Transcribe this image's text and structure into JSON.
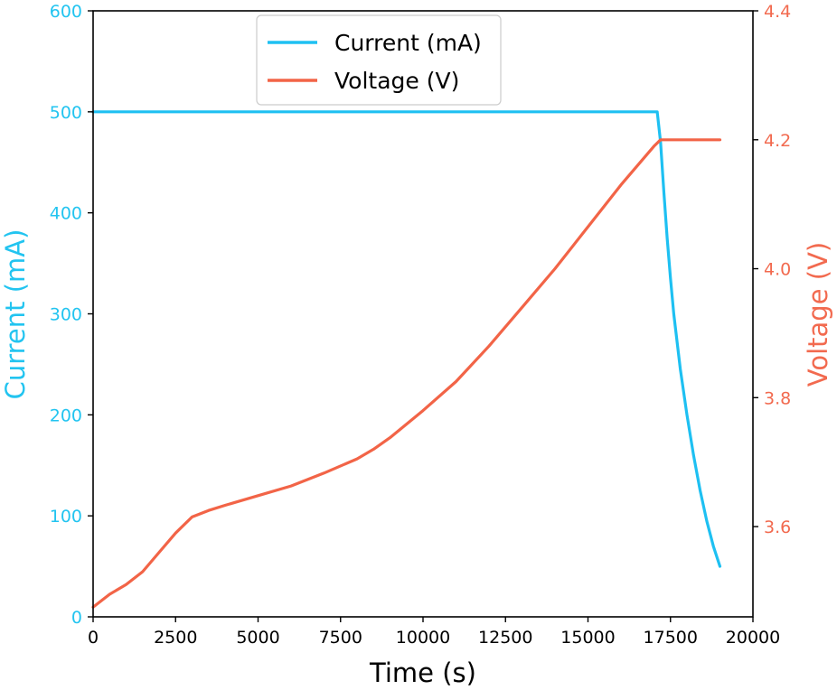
{
  "chart_data": {
    "type": "line",
    "title": "",
    "xlabel": "Time (s)",
    "ylabel_left": "Current (mA)",
    "ylabel_right": "Voltage (V)",
    "xlim": [
      0,
      20000
    ],
    "ylim_left": [
      0,
      600
    ],
    "ylim_right": [
      3.46,
      4.4
    ],
    "x_ticks": [
      0,
      2500,
      5000,
      7500,
      10000,
      12500,
      15000,
      17500,
      20000
    ],
    "y_ticks_left": [
      0,
      100,
      200,
      300,
      400,
      500,
      600
    ],
    "y_ticks_right": [
      "3.6",
      "3.8",
      "4.0",
      "4.2",
      "4.4"
    ],
    "legend_position": "upper-center",
    "grid": false,
    "colors": {
      "current": "#1ec0f2",
      "voltage": "#f26447",
      "left_axis": "#22c4f0",
      "right_axis": "#f26a4f"
    },
    "series": [
      {
        "name": "Current (mA)",
        "axis": "left",
        "x": [
          0,
          2000,
          5000,
          10000,
          15000,
          17100,
          17200,
          17300,
          17400,
          17500,
          17600,
          17800,
          18000,
          18200,
          18400,
          18600,
          18800,
          19000
        ],
        "y": [
          500,
          500,
          500,
          500,
          500,
          500,
          470,
          420,
          375,
          335,
          300,
          245,
          200,
          160,
          125,
          95,
          70,
          50
        ]
      },
      {
        "name": "Voltage (V)",
        "axis": "right",
        "x": [
          0,
          500,
          1000,
          1500,
          2000,
          2500,
          3000,
          3500,
          4000,
          5000,
          6000,
          7000,
          8000,
          8500,
          9000,
          10000,
          11000,
          12000,
          13000,
          14000,
          15000,
          16000,
          17000,
          17200,
          17500,
          18000,
          19000
        ],
        "y": [
          3.475,
          3.495,
          3.51,
          3.53,
          3.56,
          3.59,
          3.615,
          3.625,
          3.633,
          3.648,
          3.663,
          3.683,
          3.705,
          3.72,
          3.738,
          3.78,
          3.825,
          3.88,
          3.94,
          4.0,
          4.065,
          4.13,
          4.19,
          4.2,
          4.2,
          4.2,
          4.2
        ]
      }
    ]
  }
}
